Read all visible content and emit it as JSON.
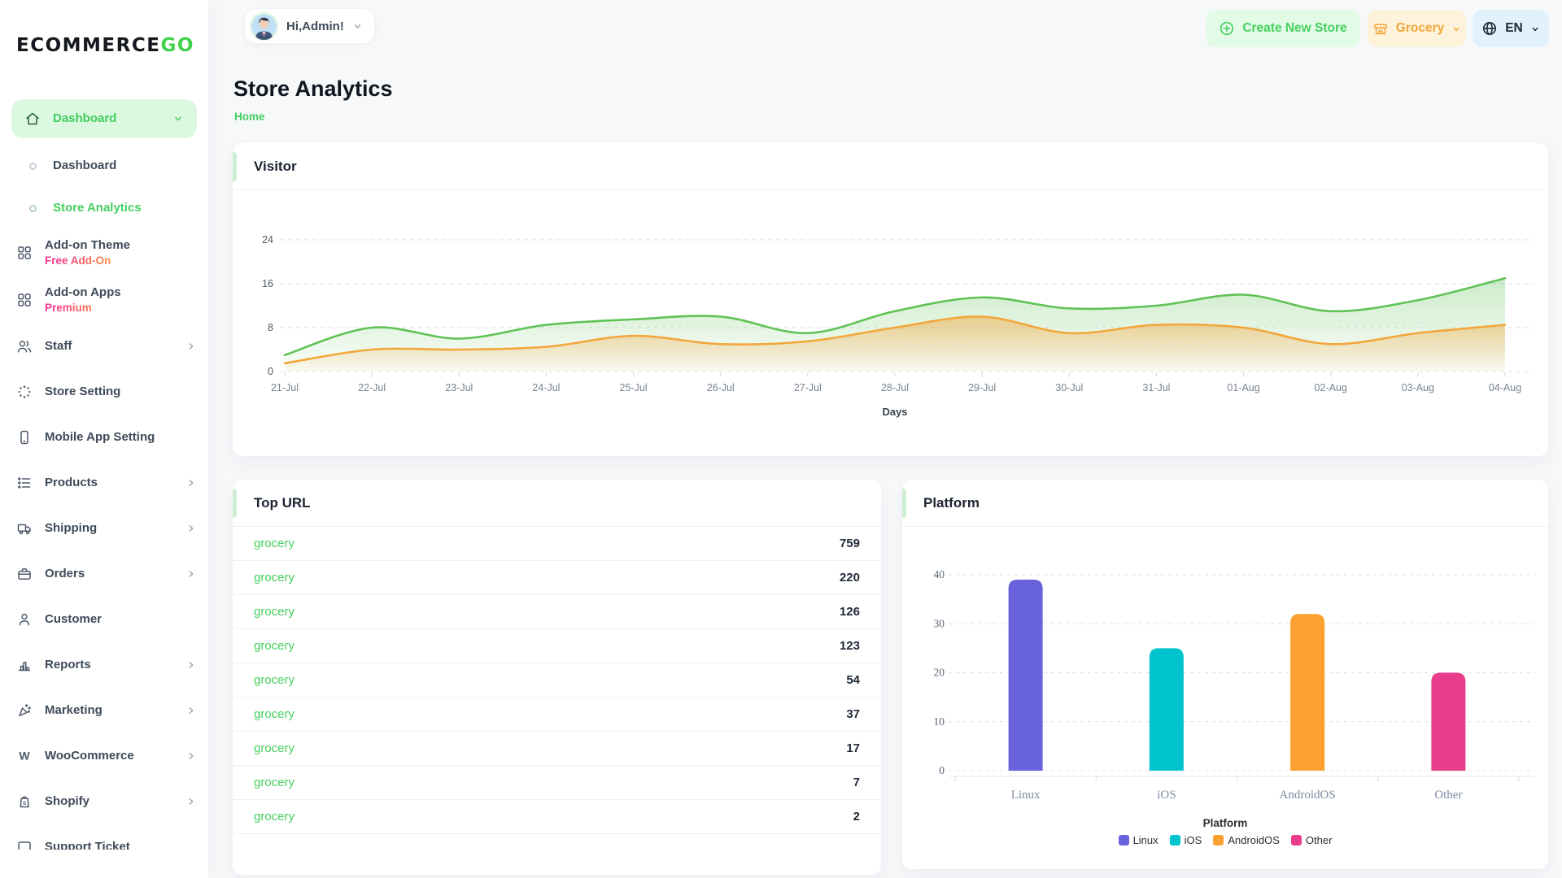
{
  "brand": {
    "text_dark": "ECOMMERCE",
    "text_green": "GO"
  },
  "header": {
    "greeting": "Hi,Admin!",
    "create_store_label": "Create New Store",
    "store_selector_label": "Grocery",
    "language_label": "EN"
  },
  "page": {
    "title": "Store Analytics",
    "breadcrumb": "Home"
  },
  "colors": {
    "accent_green": "#45cf5f",
    "accent_green_bg": "#e2fbe6",
    "orange": "#f2a53a",
    "orange_bg": "#fdf2da",
    "lang_bg": "#e1f2fd",
    "lang_text": "#1c2733"
  },
  "sidebar": {
    "items": [
      {
        "label": "Dashboard",
        "icon": "home",
        "variant": "pill",
        "active": true,
        "chevron": "down"
      },
      {
        "label": "Dashboard",
        "icon": "ring",
        "variant": "sub"
      },
      {
        "label": "Store Analytics",
        "icon": "ring",
        "variant": "sub",
        "active": true
      },
      {
        "label": "Add-on Theme",
        "badge": "Free Add-On",
        "icon": "grid",
        "variant": "twoline"
      },
      {
        "label": "Add-on Apps",
        "badge": "Premium",
        "icon": "grid",
        "variant": "twoline"
      },
      {
        "label": "Staff",
        "icon": "users",
        "chevron": "right"
      },
      {
        "label": "Store Setting",
        "icon": "dots-circle"
      },
      {
        "label": "Mobile App Setting",
        "icon": "mobile"
      },
      {
        "label": "Products",
        "icon": "list",
        "chevron": "right"
      },
      {
        "label": "Shipping",
        "icon": "truck",
        "chevron": "right"
      },
      {
        "label": "Orders",
        "icon": "briefcase",
        "chevron": "right"
      },
      {
        "label": "Customer",
        "icon": "user"
      },
      {
        "label": "Reports",
        "icon": "bar-chart",
        "chevron": "right"
      },
      {
        "label": "Marketing",
        "icon": "megaphone",
        "chevron": "right"
      },
      {
        "label": "WooCommerce",
        "icon": "woocommerce",
        "chevron": "right"
      },
      {
        "label": "Shopify",
        "icon": "shopify",
        "chevron": "right"
      },
      {
        "label": "Support Ticket",
        "icon": "ticket"
      }
    ]
  },
  "cards": {
    "visitor_title": "Visitor",
    "top_url_title": "Top URL",
    "platform_title": "Platform"
  },
  "top_urls": [
    {
      "label": "grocery",
      "value": "759"
    },
    {
      "label": "grocery",
      "value": "220"
    },
    {
      "label": "grocery",
      "value": "126"
    },
    {
      "label": "grocery",
      "value": "123"
    },
    {
      "label": "grocery",
      "value": "54"
    },
    {
      "label": "grocery",
      "value": "37"
    },
    {
      "label": "grocery",
      "value": "17"
    },
    {
      "label": "grocery",
      "value": "7"
    },
    {
      "label": "grocery",
      "value": "2"
    }
  ],
  "chart_data": [
    {
      "id": "visitor",
      "type": "area",
      "title": "Visitor",
      "x": [
        "21-Jul",
        "22-Jul",
        "23-Jul",
        "24-Jul",
        "25-Jul",
        "26-Jul",
        "27-Jul",
        "28-Jul",
        "29-Jul",
        "30-Jul",
        "31-Jul",
        "01-Aug",
        "02-Aug",
        "03-Aug",
        "04-Aug"
      ],
      "xlabel": "Days",
      "ylim": [
        0,
        24
      ],
      "yticks": [
        0,
        8,
        16,
        24
      ],
      "grid": "dashed-horizontal",
      "legend_position": "none",
      "series": [
        {
          "name": "series-1",
          "color": "#5fc255",
          "values": [
            3,
            8,
            6,
            8.5,
            9.5,
            10,
            7,
            11,
            13.5,
            11.5,
            12,
            14,
            11,
            13,
            17
          ]
        },
        {
          "name": "series-2",
          "color": "#f2a63b",
          "values": [
            1.5,
            4,
            4,
            4.5,
            6.5,
            5,
            5.5,
            8,
            10,
            7,
            8.5,
            8,
            5,
            7,
            8.5
          ]
        }
      ]
    },
    {
      "id": "platform",
      "type": "bar",
      "title": "Platform",
      "categories": [
        "Linux",
        "iOS",
        "AndroidOS",
        "Other"
      ],
      "values": [
        39,
        25,
        32,
        20
      ],
      "colors": [
        "#6862dd",
        "#00c4cd",
        "#fba12f",
        "#e93d8c"
      ],
      "ylim": [
        0,
        40
      ],
      "yticks": [
        0,
        10,
        20,
        30,
        40
      ],
      "grid": "dashed-horizontal",
      "legend_title": "Platform",
      "legend_position": "bottom",
      "legend": [
        {
          "label": "Linux",
          "color": "#6862dd"
        },
        {
          "label": "iOS",
          "color": "#00c4cd"
        },
        {
          "label": "AndroidOS",
          "color": "#fba12f"
        },
        {
          "label": "Other",
          "color": "#e93d8c"
        }
      ]
    }
  ]
}
